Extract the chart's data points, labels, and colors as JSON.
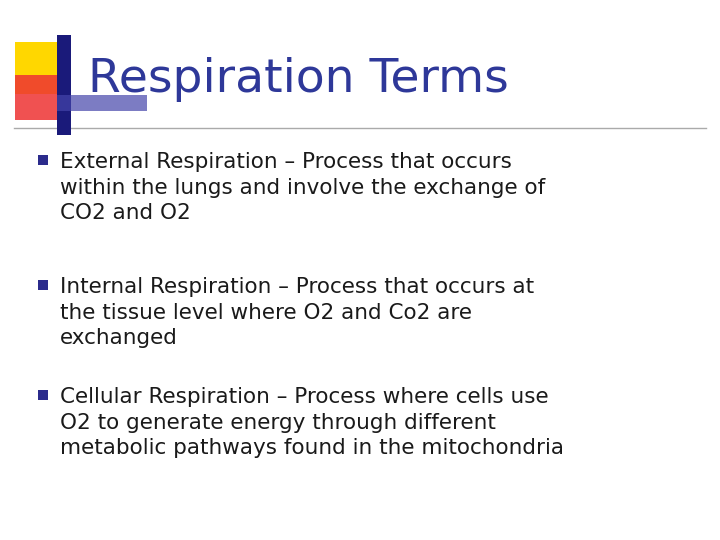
{
  "title": "Respiration Terms",
  "title_color": "#2E3899",
  "title_fontsize": 34,
  "background_color": "#FFFFFF",
  "bullet_color": "#2B2B8C",
  "text_color": "#1A1A1A",
  "bullet_items": [
    "External Respiration – Process that occurs\nwithin the lungs and involve the exchange of\nCO2 and O2",
    "Internal Respiration – Process that occurs at\nthe tissue level where O2 and Co2 are\nexchanged",
    "Cellular Respiration – Process where cells use\nO2 to generate energy through different\nmetabolic pathways found in the mitochondria"
  ],
  "bullet_fontsize": 15.5,
  "decoration": {
    "yellow": "#FFD700",
    "red": "#EE3333",
    "blue_dark": "#1A1A7A",
    "blue_mid": "#4444AA"
  },
  "line_color": "#AAAAAA",
  "figsize": [
    7.2,
    5.4
  ],
  "dpi": 100
}
